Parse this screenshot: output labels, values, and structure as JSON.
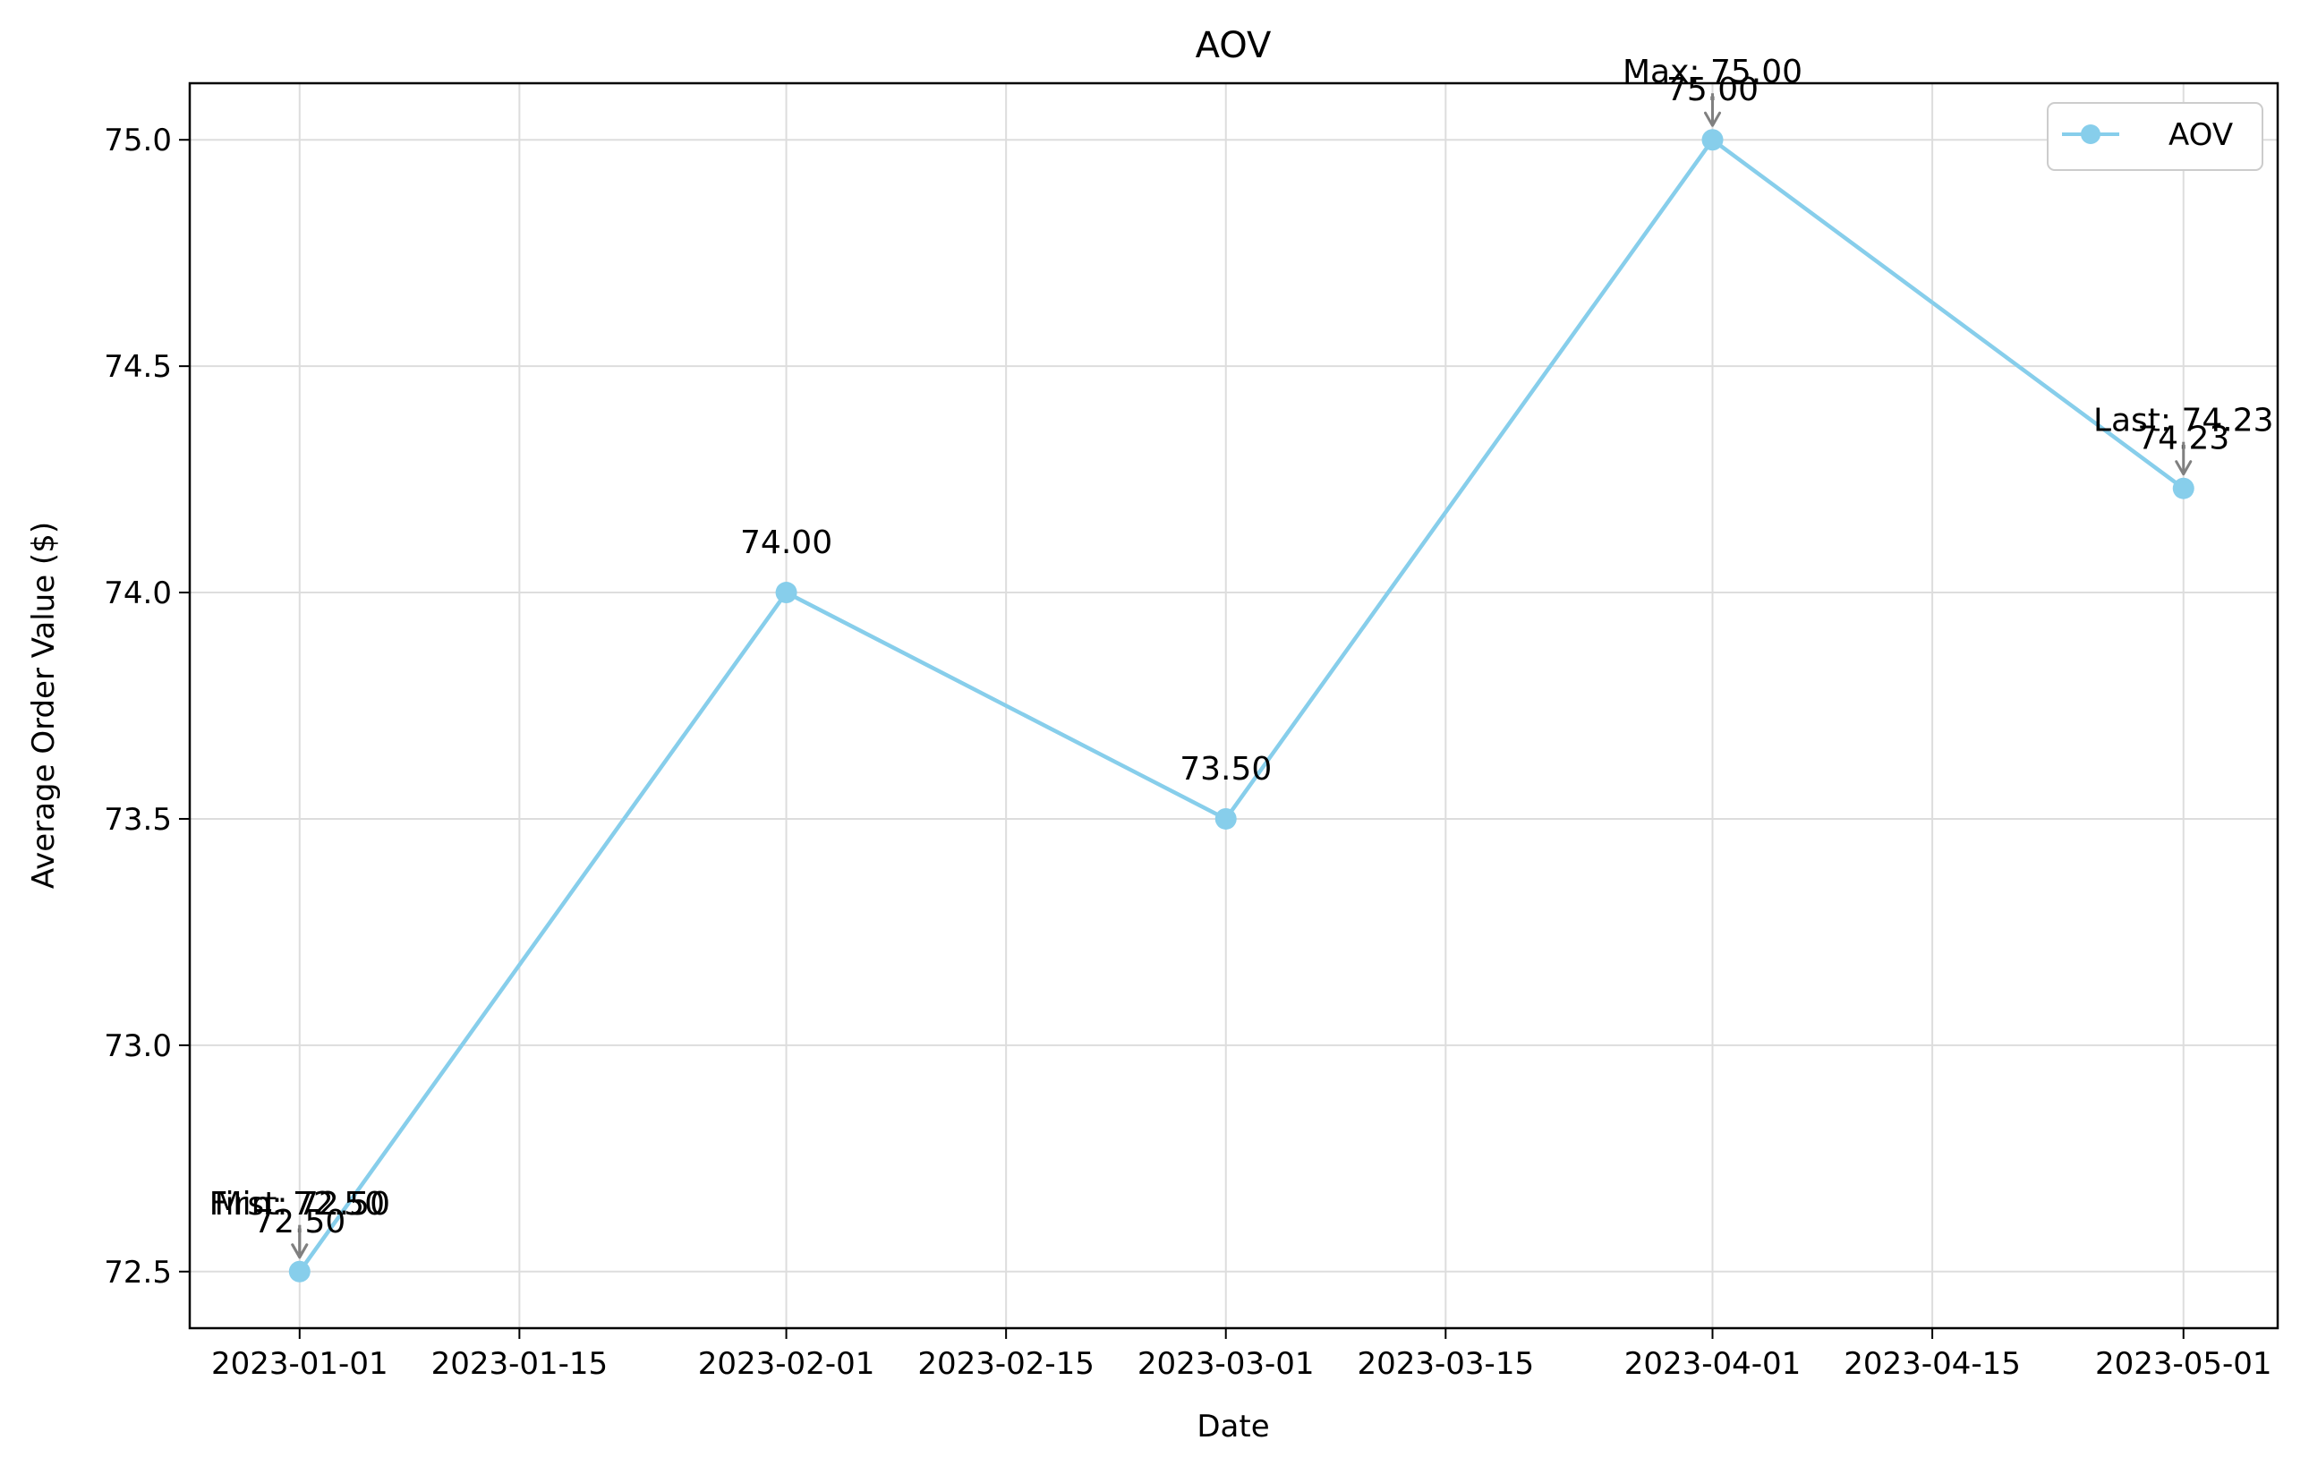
{
  "chart_data": {
    "type": "line",
    "title": "AOV",
    "xlabel": "Date",
    "ylabel": "Average Order Value ($)",
    "x": [
      "2023-01-01",
      "2023-02-01",
      "2023-03-01",
      "2023-04-01",
      "2023-05-01"
    ],
    "series": [
      {
        "name": "AOV",
        "values": [
          72.5,
          74.0,
          73.5,
          75.0,
          74.23
        ]
      }
    ],
    "data_labels": [
      "72.50",
      "74.00",
      "73.50",
      "75.00",
      "74.23"
    ],
    "annotations": [
      {
        "text": "First: 72.50",
        "x": "2023-01-01",
        "y": 72.5
      },
      {
        "text": "Min: 72.50",
        "x": "2023-01-01",
        "y": 72.5
      },
      {
        "text": "Max: 75.00",
        "x": "2023-04-01",
        "y": 75.0
      },
      {
        "text": "Last: 74.23",
        "x": "2023-05-01",
        "y": 74.23
      }
    ],
    "x_ticks": [
      "2023-01-01",
      "2023-01-15",
      "2023-02-01",
      "2023-02-15",
      "2023-03-01",
      "2023-03-15",
      "2023-04-01",
      "2023-04-15",
      "2023-05-01"
    ],
    "y_ticks": [
      "72.5",
      "73.0",
      "73.5",
      "74.0",
      "74.5",
      "75.0"
    ],
    "y_tick_values": [
      72.5,
      73.0,
      73.5,
      74.0,
      74.5,
      75.0
    ],
    "ylim": [
      72.375,
      75.125
    ],
    "xlim": [
      "2022-12-25",
      "2023-05-07"
    ],
    "grid": true,
    "legend": {
      "position": "top-right",
      "entries": [
        "AOV"
      ]
    },
    "colors": {
      "line": "#87ceeb",
      "grid": "#dddddd",
      "arrow": "#808080"
    }
  }
}
